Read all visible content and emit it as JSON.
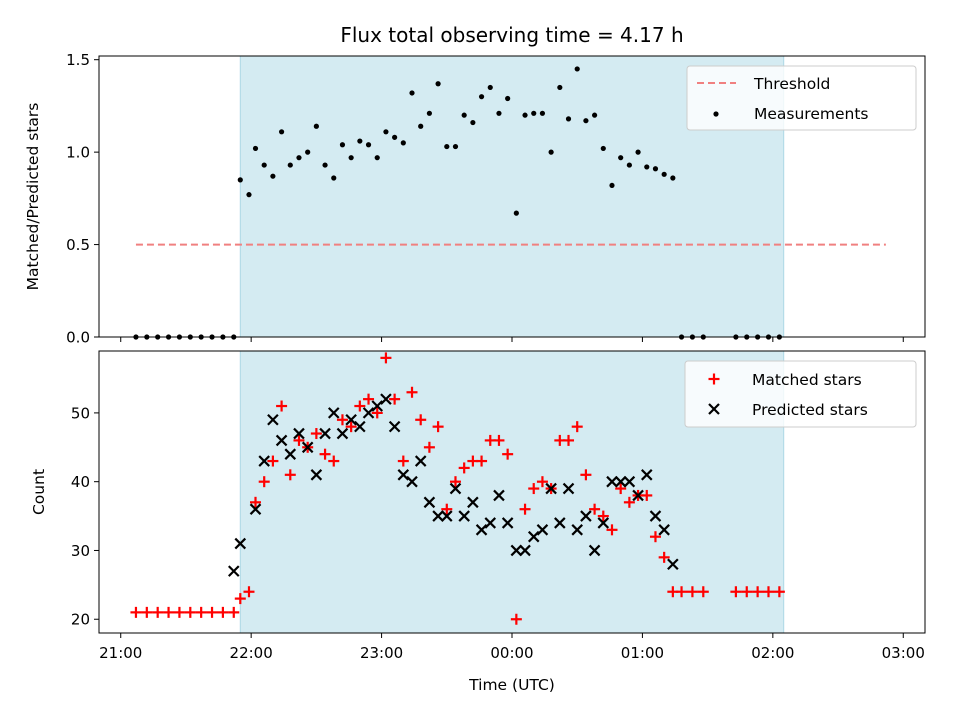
{
  "title": "Flux total observing time = 4.17 h",
  "colors": {
    "shade": "#add8e6",
    "threshold": "#f08080",
    "measurement": "#000000",
    "matched": "#ff0000",
    "predicted": "#000000"
  },
  "chart_data": [
    {
      "type": "scatter",
      "panel": "top",
      "ylabel": "Matched/Predicted stars",
      "xlabel": "",
      "xlim": [
        "20:50",
        "03:10"
      ],
      "ylim": [
        0,
        1.52
      ],
      "yticks": [
        "0.0",
        "0.5",
        "1.0",
        "1.5"
      ],
      "legend_position": "upper right",
      "shaded_interval": [
        "21:55",
        "02:05"
      ],
      "threshold": {
        "name": "Threshold",
        "value": 0.5,
        "x_range": [
          "21:07",
          "02:52"
        ]
      },
      "measurements_name": "Measurements",
      "measurements": [
        [
          "21:07",
          0
        ],
        [
          "21:12",
          0
        ],
        [
          "21:17",
          0
        ],
        [
          "21:22",
          0
        ],
        [
          "21:27",
          0
        ],
        [
          "21:32",
          0
        ],
        [
          "21:37",
          0
        ],
        [
          "21:42",
          0
        ],
        [
          "21:47",
          0
        ],
        [
          "21:52",
          0
        ],
        [
          "21:55",
          0.85
        ],
        [
          "21:59",
          0.77
        ],
        [
          "22:02",
          1.02
        ],
        [
          "22:06",
          0.93
        ],
        [
          "22:10",
          0.87
        ],
        [
          "22:14",
          1.11
        ],
        [
          "22:18",
          0.93
        ],
        [
          "22:22",
          0.97
        ],
        [
          "22:26",
          1.0
        ],
        [
          "22:30",
          1.14
        ],
        [
          "22:34",
          0.93
        ],
        [
          "22:38",
          0.86
        ],
        [
          "22:42",
          1.04
        ],
        [
          "22:46",
          0.97
        ],
        [
          "22:50",
          1.06
        ],
        [
          "22:54",
          1.04
        ],
        [
          "22:58",
          0.97
        ],
        [
          "23:02",
          1.11
        ],
        [
          "23:06",
          1.08
        ],
        [
          "23:10",
          1.05
        ],
        [
          "23:14",
          1.32
        ],
        [
          "23:18",
          1.14
        ],
        [
          "23:22",
          1.21
        ],
        [
          "23:26",
          1.37
        ],
        [
          "23:30",
          1.03
        ],
        [
          "23:34",
          1.03
        ],
        [
          "23:38",
          1.2
        ],
        [
          "23:42",
          1.16
        ],
        [
          "23:46",
          1.3
        ],
        [
          "23:50",
          1.35
        ],
        [
          "23:54",
          1.21
        ],
        [
          "23:58",
          1.29
        ],
        [
          "00:02",
          0.67
        ],
        [
          "00:06",
          1.2
        ],
        [
          "00:10",
          1.21
        ],
        [
          "00:14",
          1.21
        ],
        [
          "00:18",
          1.0
        ],
        [
          "00:22",
          1.35
        ],
        [
          "00:26",
          1.18
        ],
        [
          "00:30",
          1.45
        ],
        [
          "00:34",
          1.17
        ],
        [
          "00:38",
          1.2
        ],
        [
          "00:42",
          1.02
        ],
        [
          "00:46",
          0.82
        ],
        [
          "00:50",
          0.97
        ],
        [
          "00:54",
          0.93
        ],
        [
          "00:58",
          1.0
        ],
        [
          "01:02",
          0.92
        ],
        [
          "01:06",
          0.91
        ],
        [
          "01:10",
          0.88
        ],
        [
          "01:14",
          0.86
        ],
        [
          "01:18",
          0
        ],
        [
          "01:23",
          0
        ],
        [
          "01:28",
          0
        ],
        [
          "01:43",
          0
        ],
        [
          "01:48",
          0
        ],
        [
          "01:53",
          0
        ],
        [
          "01:58",
          0
        ],
        [
          "02:03",
          0
        ]
      ]
    },
    {
      "type": "scatter",
      "panel": "bottom",
      "xlabel": "Time (UTC)",
      "ylabel": "Count",
      "xlim": [
        "20:50",
        "03:10"
      ],
      "ylim": [
        18,
        59
      ],
      "yticks": [
        "20",
        "30",
        "40",
        "50"
      ],
      "xticks": [
        "21:00",
        "22:00",
        "23:00",
        "00:00",
        "01:00",
        "02:00",
        "03:00"
      ],
      "legend_position": "upper right",
      "shaded_interval": [
        "21:55",
        "02:05"
      ],
      "series": [
        {
          "name": "Matched stars",
          "marker": "+",
          "points": [
            [
              "21:07",
              21
            ],
            [
              "21:12",
              21
            ],
            [
              "21:17",
              21
            ],
            [
              "21:22",
              21
            ],
            [
              "21:27",
              21
            ],
            [
              "21:32",
              21
            ],
            [
              "21:37",
              21
            ],
            [
              "21:42",
              21
            ],
            [
              "21:47",
              21
            ],
            [
              "21:52",
              21
            ],
            [
              "21:55",
              23
            ],
            [
              "21:59",
              24
            ],
            [
              "22:02",
              37
            ],
            [
              "22:06",
              40
            ],
            [
              "22:10",
              43
            ],
            [
              "22:14",
              51
            ],
            [
              "22:18",
              41
            ],
            [
              "22:22",
              46
            ],
            [
              "22:26",
              45
            ],
            [
              "22:30",
              47
            ],
            [
              "22:34",
              44
            ],
            [
              "22:38",
              43
            ],
            [
              "22:42",
              49
            ],
            [
              "22:46",
              48
            ],
            [
              "22:50",
              51
            ],
            [
              "22:54",
              52
            ],
            [
              "22:58",
              50
            ],
            [
              "23:02",
              58
            ],
            [
              "23:06",
              52
            ],
            [
              "23:10",
              43
            ],
            [
              "23:14",
              53
            ],
            [
              "23:18",
              49
            ],
            [
              "23:22",
              45
            ],
            [
              "23:26",
              48
            ],
            [
              "23:30",
              36
            ],
            [
              "23:34",
              40
            ],
            [
              "23:38",
              42
            ],
            [
              "23:42",
              43
            ],
            [
              "23:46",
              43
            ],
            [
              "23:50",
              46
            ],
            [
              "23:54",
              46
            ],
            [
              "23:58",
              44
            ],
            [
              "00:02",
              20
            ],
            [
              "00:06",
              36
            ],
            [
              "00:10",
              39
            ],
            [
              "00:14",
              40
            ],
            [
              "00:18",
              39
            ],
            [
              "00:22",
              46
            ],
            [
              "00:26",
              46
            ],
            [
              "00:30",
              48
            ],
            [
              "00:34",
              41
            ],
            [
              "00:38",
              36
            ],
            [
              "00:42",
              35
            ],
            [
              "00:46",
              33
            ],
            [
              "00:50",
              39
            ],
            [
              "00:54",
              37
            ],
            [
              "00:58",
              38
            ],
            [
              "01:02",
              38
            ],
            [
              "01:06",
              32
            ],
            [
              "01:10",
              29
            ],
            [
              "01:14",
              24
            ],
            [
              "01:18",
              24
            ],
            [
              "01:23",
              24
            ],
            [
              "01:28",
              24
            ],
            [
              "01:43",
              24
            ],
            [
              "01:48",
              24
            ],
            [
              "01:53",
              24
            ],
            [
              "01:58",
              24
            ],
            [
              "02:03",
              24
            ]
          ]
        },
        {
          "name": "Predicted stars",
          "marker": "x",
          "points": [
            [
              "21:52",
              27
            ],
            [
              "21:55",
              31
            ],
            [
              "22:02",
              36
            ],
            [
              "22:06",
              43
            ],
            [
              "22:10",
              49
            ],
            [
              "22:14",
              46
            ],
            [
              "22:18",
              44
            ],
            [
              "22:22",
              47
            ],
            [
              "22:26",
              45
            ],
            [
              "22:30",
              41
            ],
            [
              "22:34",
              47
            ],
            [
              "22:38",
              50
            ],
            [
              "22:42",
              47
            ],
            [
              "22:46",
              49
            ],
            [
              "22:50",
              48
            ],
            [
              "22:54",
              50
            ],
            [
              "22:58",
              51
            ],
            [
              "23:02",
              52
            ],
            [
              "23:06",
              48
            ],
            [
              "23:10",
              41
            ],
            [
              "23:14",
              40
            ],
            [
              "23:18",
              43
            ],
            [
              "23:22",
              37
            ],
            [
              "23:26",
              35
            ],
            [
              "23:30",
              35
            ],
            [
              "23:34",
              39
            ],
            [
              "23:38",
              35
            ],
            [
              "23:42",
              37
            ],
            [
              "23:46",
              33
            ],
            [
              "23:50",
              34
            ],
            [
              "23:54",
              38
            ],
            [
              "23:58",
              34
            ],
            [
              "00:02",
              30
            ],
            [
              "00:06",
              30
            ],
            [
              "00:10",
              32
            ],
            [
              "00:14",
              33
            ],
            [
              "00:18",
              39
            ],
            [
              "00:22",
              34
            ],
            [
              "00:26",
              39
            ],
            [
              "00:30",
              33
            ],
            [
              "00:34",
              35
            ],
            [
              "00:38",
              30
            ],
            [
              "00:42",
              34
            ],
            [
              "00:46",
              40
            ],
            [
              "00:50",
              40
            ],
            [
              "00:54",
              40
            ],
            [
              "00:58",
              38
            ],
            [
              "01:02",
              41
            ],
            [
              "01:06",
              35
            ],
            [
              "01:10",
              33
            ],
            [
              "01:14",
              28
            ]
          ]
        }
      ]
    }
  ]
}
